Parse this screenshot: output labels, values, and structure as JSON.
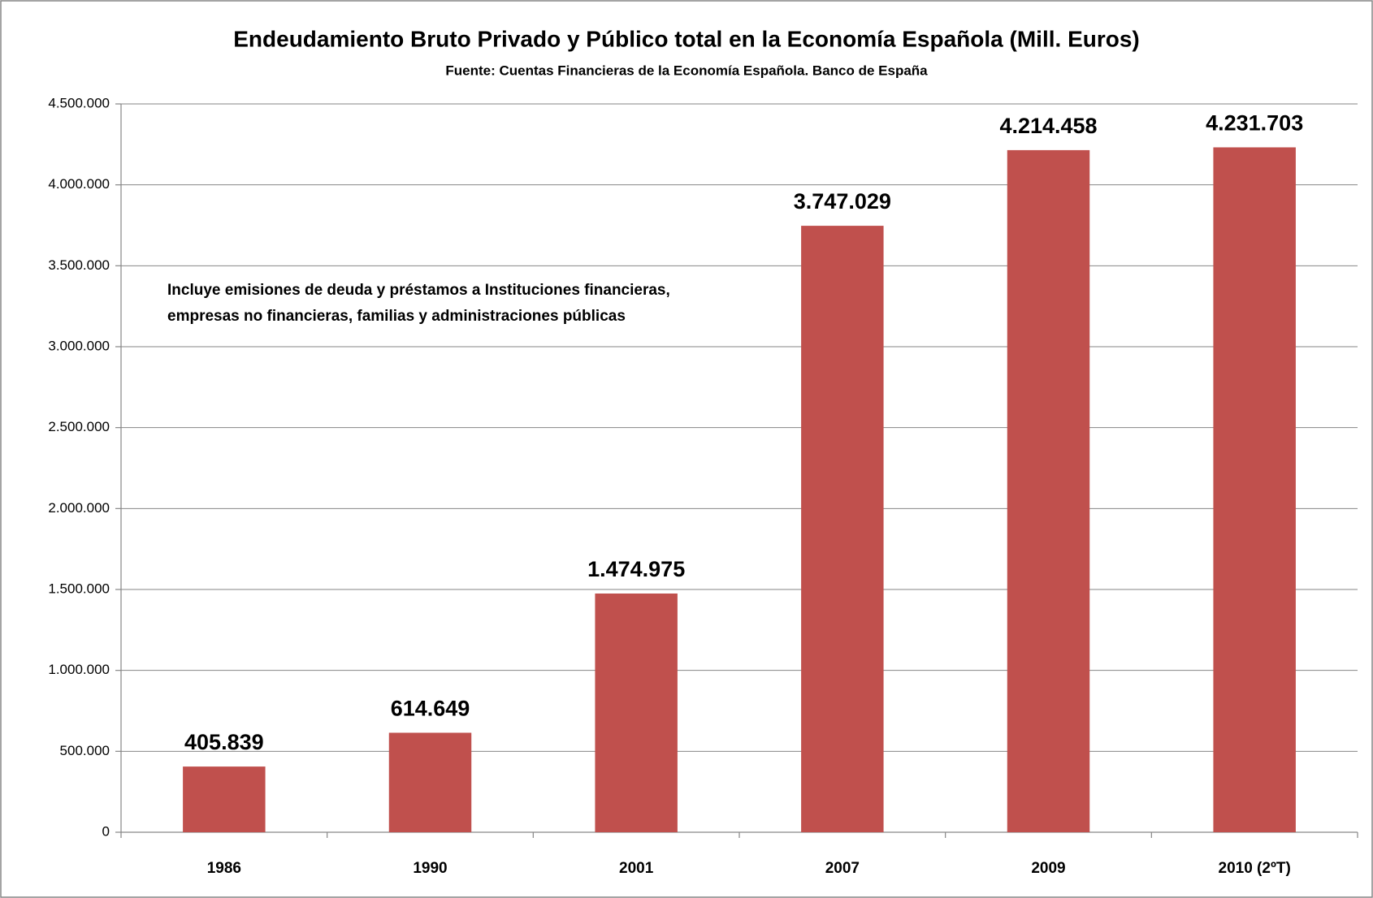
{
  "chart_data": {
    "type": "bar",
    "title": "Endeudamiento  Bruto Privado y Público total en la Economía Española  (Mill.  Euros)",
    "subtitle": "Fuente: Cuentas Financieras de la Economía Española. Banco de España",
    "annotation": [
      "Incluye emisiones de deuda y préstamos a Instituciones financieras,",
      "empresas no financieras, familias y administraciones públicas"
    ],
    "categories": [
      "1986",
      "1990",
      "2001",
      "2007",
      "2009",
      "2010 (2ºT)"
    ],
    "values": [
      405839,
      614649,
      1474975,
      3747029,
      4214458,
      4231703
    ],
    "value_labels": [
      "405.839",
      "614.649",
      "1.474.975",
      "3.747.029",
      "4.214.458",
      "4.231.703"
    ],
    "color": "#c0504d",
    "ylim": [
      0,
      4500000
    ],
    "yticks": [
      0,
      {
        "value": 500000,
        "label": "500.000"
      },
      {
        "value": 1000000,
        "label": "1.000.000"
      },
      {
        "value": 1500000,
        "label": "1.500.000"
      },
      {
        "value": 2000000,
        "label": "2.000.000"
      },
      {
        "value": 2500000,
        "label": "2.500.000"
      },
      {
        "value": 3000000,
        "label": "3.000.000"
      },
      {
        "value": 3500000,
        "label": "3.500.000"
      },
      {
        "value": 4000000,
        "label": "4.000.000"
      },
      {
        "value": 4500000,
        "label": "4.500.000"
      }
    ],
    "grid": true
  }
}
